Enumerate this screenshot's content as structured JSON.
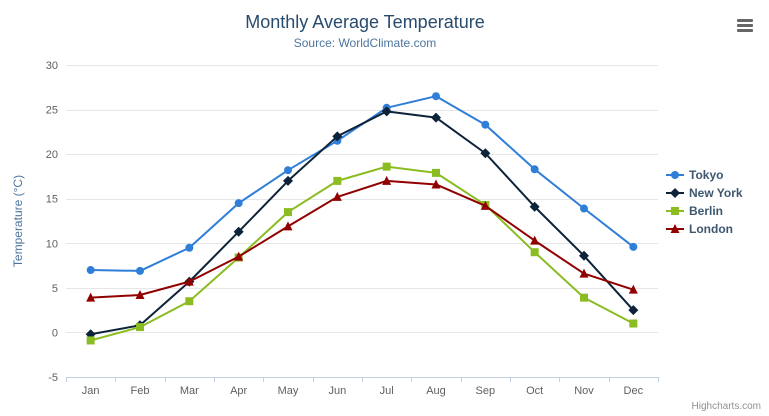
{
  "chart": {
    "title": "Monthly Average Temperature",
    "subtitle": "Source: WorldClimate.com",
    "credits": "Highcharts.com"
  },
  "chart_data": {
    "type": "line",
    "categories": [
      "Jan",
      "Feb",
      "Mar",
      "Apr",
      "May",
      "Jun",
      "Jul",
      "Aug",
      "Sep",
      "Oct",
      "Nov",
      "Dec"
    ],
    "series": [
      {
        "name": "Tokyo",
        "color": "#2f7ed8",
        "marker": "circle",
        "values": [
          7.0,
          6.9,
          9.5,
          14.5,
          18.2,
          21.5,
          25.2,
          26.5,
          23.3,
          18.3,
          13.9,
          9.6
        ]
      },
      {
        "name": "New York",
        "color": "#0d233a",
        "marker": "diamond",
        "values": [
          -0.2,
          0.8,
          5.7,
          11.3,
          17.0,
          22.0,
          24.8,
          24.1,
          20.1,
          14.1,
          8.6,
          2.5
        ]
      },
      {
        "name": "Berlin",
        "color": "#8bbc21",
        "marker": "square",
        "values": [
          -0.9,
          0.6,
          3.5,
          8.4,
          13.5,
          17.0,
          18.6,
          17.9,
          14.3,
          9.0,
          3.9,
          1.0
        ]
      },
      {
        "name": "London",
        "color": "#910000",
        "marker": "triangle",
        "values": [
          3.9,
          4.2,
          5.7,
          8.5,
          11.9,
          15.2,
          17.0,
          16.6,
          14.2,
          10.3,
          6.6,
          4.8
        ]
      }
    ],
    "xlabel": "",
    "ylabel": "Temperature (°C)",
    "ylim": [
      -5,
      30
    ],
    "ytick_interval": 5,
    "grid": true,
    "legend_position": "right"
  }
}
